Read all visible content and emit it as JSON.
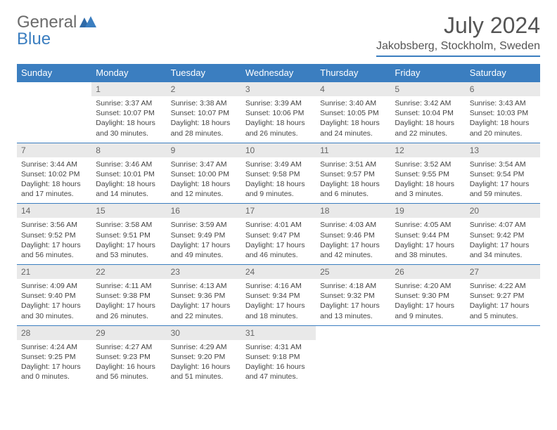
{
  "brand": {
    "part1": "General",
    "part2": "Blue",
    "color1": "#6b6b6b",
    "color2": "#3b7ec0"
  },
  "title": "July 2024",
  "location": "Jakobsberg, Stockholm, Sweden",
  "theme": {
    "header_bg": "#3b7ec0",
    "header_fg": "#ffffff",
    "daynum_bg": "#e9e9e9",
    "border_color": "#3b7ec0"
  },
  "weekdays": [
    "Sunday",
    "Monday",
    "Tuesday",
    "Wednesday",
    "Thursday",
    "Friday",
    "Saturday"
  ],
  "weeks": [
    {
      "days": [
        {
          "num": "",
          "sunrise": "",
          "sunset": "",
          "daylight": ""
        },
        {
          "num": "1",
          "sunrise": "Sunrise: 3:37 AM",
          "sunset": "Sunset: 10:07 PM",
          "daylight": "Daylight: 18 hours and 30 minutes."
        },
        {
          "num": "2",
          "sunrise": "Sunrise: 3:38 AM",
          "sunset": "Sunset: 10:07 PM",
          "daylight": "Daylight: 18 hours and 28 minutes."
        },
        {
          "num": "3",
          "sunrise": "Sunrise: 3:39 AM",
          "sunset": "Sunset: 10:06 PM",
          "daylight": "Daylight: 18 hours and 26 minutes."
        },
        {
          "num": "4",
          "sunrise": "Sunrise: 3:40 AM",
          "sunset": "Sunset: 10:05 PM",
          "daylight": "Daylight: 18 hours and 24 minutes."
        },
        {
          "num": "5",
          "sunrise": "Sunrise: 3:42 AM",
          "sunset": "Sunset: 10:04 PM",
          "daylight": "Daylight: 18 hours and 22 minutes."
        },
        {
          "num": "6",
          "sunrise": "Sunrise: 3:43 AM",
          "sunset": "Sunset: 10:03 PM",
          "daylight": "Daylight: 18 hours and 20 minutes."
        }
      ]
    },
    {
      "days": [
        {
          "num": "7",
          "sunrise": "Sunrise: 3:44 AM",
          "sunset": "Sunset: 10:02 PM",
          "daylight": "Daylight: 18 hours and 17 minutes."
        },
        {
          "num": "8",
          "sunrise": "Sunrise: 3:46 AM",
          "sunset": "Sunset: 10:01 PM",
          "daylight": "Daylight: 18 hours and 14 minutes."
        },
        {
          "num": "9",
          "sunrise": "Sunrise: 3:47 AM",
          "sunset": "Sunset: 10:00 PM",
          "daylight": "Daylight: 18 hours and 12 minutes."
        },
        {
          "num": "10",
          "sunrise": "Sunrise: 3:49 AM",
          "sunset": "Sunset: 9:58 PM",
          "daylight": "Daylight: 18 hours and 9 minutes."
        },
        {
          "num": "11",
          "sunrise": "Sunrise: 3:51 AM",
          "sunset": "Sunset: 9:57 PM",
          "daylight": "Daylight: 18 hours and 6 minutes."
        },
        {
          "num": "12",
          "sunrise": "Sunrise: 3:52 AM",
          "sunset": "Sunset: 9:55 PM",
          "daylight": "Daylight: 18 hours and 3 minutes."
        },
        {
          "num": "13",
          "sunrise": "Sunrise: 3:54 AM",
          "sunset": "Sunset: 9:54 PM",
          "daylight": "Daylight: 17 hours and 59 minutes."
        }
      ]
    },
    {
      "days": [
        {
          "num": "14",
          "sunrise": "Sunrise: 3:56 AM",
          "sunset": "Sunset: 9:52 PM",
          "daylight": "Daylight: 17 hours and 56 minutes."
        },
        {
          "num": "15",
          "sunrise": "Sunrise: 3:58 AM",
          "sunset": "Sunset: 9:51 PM",
          "daylight": "Daylight: 17 hours and 53 minutes."
        },
        {
          "num": "16",
          "sunrise": "Sunrise: 3:59 AM",
          "sunset": "Sunset: 9:49 PM",
          "daylight": "Daylight: 17 hours and 49 minutes."
        },
        {
          "num": "17",
          "sunrise": "Sunrise: 4:01 AM",
          "sunset": "Sunset: 9:47 PM",
          "daylight": "Daylight: 17 hours and 46 minutes."
        },
        {
          "num": "18",
          "sunrise": "Sunrise: 4:03 AM",
          "sunset": "Sunset: 9:46 PM",
          "daylight": "Daylight: 17 hours and 42 minutes."
        },
        {
          "num": "19",
          "sunrise": "Sunrise: 4:05 AM",
          "sunset": "Sunset: 9:44 PM",
          "daylight": "Daylight: 17 hours and 38 minutes."
        },
        {
          "num": "20",
          "sunrise": "Sunrise: 4:07 AM",
          "sunset": "Sunset: 9:42 PM",
          "daylight": "Daylight: 17 hours and 34 minutes."
        }
      ]
    },
    {
      "days": [
        {
          "num": "21",
          "sunrise": "Sunrise: 4:09 AM",
          "sunset": "Sunset: 9:40 PM",
          "daylight": "Daylight: 17 hours and 30 minutes."
        },
        {
          "num": "22",
          "sunrise": "Sunrise: 4:11 AM",
          "sunset": "Sunset: 9:38 PM",
          "daylight": "Daylight: 17 hours and 26 minutes."
        },
        {
          "num": "23",
          "sunrise": "Sunrise: 4:13 AM",
          "sunset": "Sunset: 9:36 PM",
          "daylight": "Daylight: 17 hours and 22 minutes."
        },
        {
          "num": "24",
          "sunrise": "Sunrise: 4:16 AM",
          "sunset": "Sunset: 9:34 PM",
          "daylight": "Daylight: 17 hours and 18 minutes."
        },
        {
          "num": "25",
          "sunrise": "Sunrise: 4:18 AM",
          "sunset": "Sunset: 9:32 PM",
          "daylight": "Daylight: 17 hours and 13 minutes."
        },
        {
          "num": "26",
          "sunrise": "Sunrise: 4:20 AM",
          "sunset": "Sunset: 9:30 PM",
          "daylight": "Daylight: 17 hours and 9 minutes."
        },
        {
          "num": "27",
          "sunrise": "Sunrise: 4:22 AM",
          "sunset": "Sunset: 9:27 PM",
          "daylight": "Daylight: 17 hours and 5 minutes."
        }
      ]
    },
    {
      "days": [
        {
          "num": "28",
          "sunrise": "Sunrise: 4:24 AM",
          "sunset": "Sunset: 9:25 PM",
          "daylight": "Daylight: 17 hours and 0 minutes."
        },
        {
          "num": "29",
          "sunrise": "Sunrise: 4:27 AM",
          "sunset": "Sunset: 9:23 PM",
          "daylight": "Daylight: 16 hours and 56 minutes."
        },
        {
          "num": "30",
          "sunrise": "Sunrise: 4:29 AM",
          "sunset": "Sunset: 9:20 PM",
          "daylight": "Daylight: 16 hours and 51 minutes."
        },
        {
          "num": "31",
          "sunrise": "Sunrise: 4:31 AM",
          "sunset": "Sunset: 9:18 PM",
          "daylight": "Daylight: 16 hours and 47 minutes."
        },
        {
          "num": "",
          "sunrise": "",
          "sunset": "",
          "daylight": ""
        },
        {
          "num": "",
          "sunrise": "",
          "sunset": "",
          "daylight": ""
        },
        {
          "num": "",
          "sunrise": "",
          "sunset": "",
          "daylight": ""
        }
      ]
    }
  ]
}
